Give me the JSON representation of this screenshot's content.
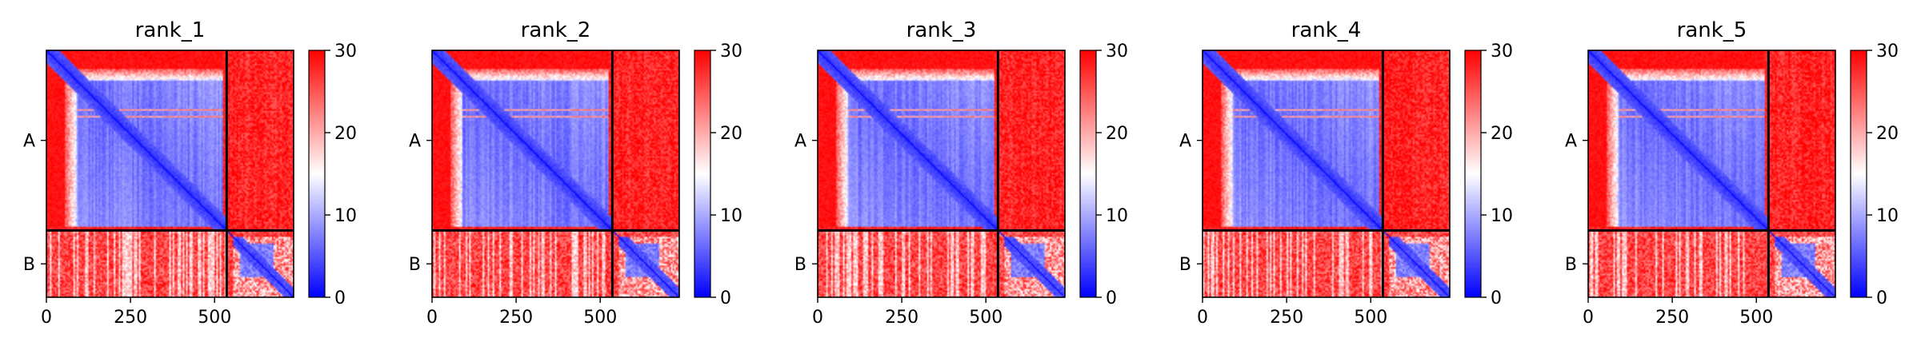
{
  "chart_data": {
    "type": "heatmap",
    "description_kind": "Predicted aligned error (PAE) matrices for 5 ranked models",
    "panels": [
      {
        "title": "rank_1"
      },
      {
        "title": "rank_2"
      },
      {
        "title": "rank_3"
      },
      {
        "title": "rank_4"
      },
      {
        "title": "rank_5"
      }
    ],
    "chains": [
      {
        "label": "A",
        "start": 0,
        "end": 536
      },
      {
        "label": "B",
        "start": 536,
        "end": 735
      }
    ],
    "matrix_size": 735,
    "x_ticks": [
      0,
      250,
      500
    ],
    "x_tick_labels": [
      "0",
      "250",
      "500"
    ],
    "xlim": [
      0,
      735
    ],
    "ylim": [
      0,
      735
    ],
    "colorbar": {
      "colormap": "bwr",
      "range": [
        0,
        30
      ],
      "ticks": [
        0,
        10,
        20,
        30
      ],
      "tick_labels": [
        "0",
        "10",
        "20",
        "30"
      ],
      "colors": {
        "low": "#0000ff",
        "mid": "#ffffff",
        "high": "#ff0000"
      }
    },
    "block_values": {
      "A_A_core": 4,
      "A_A_edge_band": 14,
      "A_B": 30,
      "B_A": 28,
      "B_B_core": 5,
      "diagonal": 0
    }
  }
}
